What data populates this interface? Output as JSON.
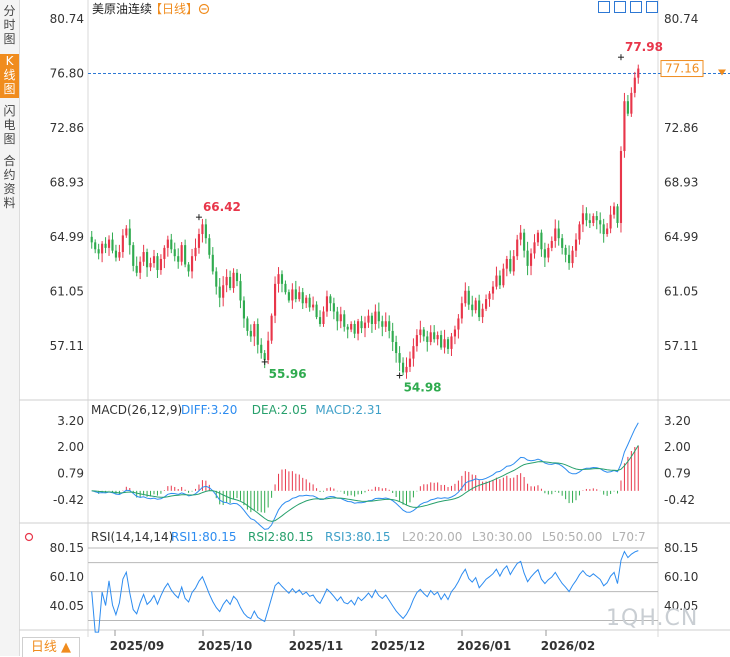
{
  "sidebar": {
    "tabs": [
      {
        "label": "分时图",
        "active": false
      },
      {
        "label": "K线图",
        "active": true
      },
      {
        "label": "闪电图",
        "active": false
      },
      {
        "label": "合约资料",
        "active": false
      }
    ]
  },
  "header": {
    "instrument": "美原油连续",
    "period_tag": "【日线】",
    "zoom_icon": "zoom-out-icon"
  },
  "toolbar_icons": [
    "expand-icon",
    "crosshair-icon",
    "settings-icon",
    "fullscreen-icon"
  ],
  "footer": {
    "period_button": "日线 ▲"
  },
  "watermark": "1QH.CN",
  "colors": {
    "up": "#e8364a",
    "down": "#2fab4f",
    "accent": "#f08c1e",
    "diff": "#2d8cf0",
    "dea": "#27a06c",
    "macd": "#3fa0c8",
    "rsi": "#2d8cf0"
  },
  "chart_data": [
    {
      "type": "candlestick",
      "panel": "price",
      "y_ticks": [
        "80.74",
        "76.80",
        "72.86",
        "68.93",
        "64.99",
        "61.05",
        "57.11"
      ],
      "ylim": [
        53.2,
        80.74
      ],
      "x_ticks": [
        "2025/09",
        "2025/10",
        "2025/11",
        "2025/12",
        "2026/01",
        "2026/02"
      ],
      "current_price_label": "77.16",
      "reference_line": 76.8,
      "annotations": [
        {
          "label": "66.42",
          "value": 66.42,
          "kind": "high"
        },
        {
          "label": "55.96",
          "value": 55.96,
          "kind": "low"
        },
        {
          "label": "54.98",
          "value": 54.98,
          "kind": "low"
        },
        {
          "label": "77.98",
          "value": 77.98,
          "kind": "high"
        }
      ],
      "series_close": [
        64.6,
        64.1,
        63.8,
        64.5,
        64.2,
        64.8,
        64.0,
        63.5,
        63.9,
        65.1,
        65.6,
        64.4,
        62.9,
        62.4,
        63.2,
        63.9,
        62.8,
        63.1,
        63.6,
        62.6,
        63.4,
        64.2,
        64.8,
        64.1,
        63.6,
        63.2,
        64.4,
        63.0,
        62.5,
        63.6,
        64.2,
        65.2,
        65.9,
        64.9,
        63.7,
        62.5,
        61.4,
        60.6,
        61.5,
        62.1,
        61.3,
        62.4,
        61.8,
        60.4,
        59.1,
        58.2,
        57.8,
        58.7,
        57.2,
        56.6,
        56.1,
        57.5,
        59.3,
        61.6,
        62.3,
        61.6,
        61.0,
        60.4,
        61.2,
        60.5,
        61.0,
        60.2,
        60.6,
        59.9,
        60.1,
        59.2,
        58.7,
        59.6,
        60.7,
        60.2,
        59.6,
        58.9,
        59.4,
        58.5,
        58.3,
        58.7,
        58.0,
        58.9,
        58.4,
        58.8,
        59.3,
        58.7,
        59.6,
        58.9,
        58.5,
        58.9,
        58.2,
        57.4,
        56.6,
        55.9,
        55.2,
        55.6,
        56.2,
        57.1,
        57.9,
        58.3,
        57.8,
        57.4,
        58.1,
        57.6,
        57.9,
        57.0,
        57.6,
        56.9,
        57.8,
        58.3,
        59.1,
        60.2,
        61.1,
        60.1,
        59.7,
        60.4,
        59.2,
        59.8,
        60.5,
        60.9,
        61.4,
        62.2,
        61.5,
        62.7,
        63.4,
        62.5,
        63.6,
        64.8,
        65.3,
        64.0,
        62.9,
        63.8,
        64.6,
        65.3,
        64.1,
        63.5,
        64.2,
        64.7,
        65.6,
        64.9,
        64.2,
        63.7,
        63.1,
        64.0,
        64.8,
        65.9,
        66.7,
        66.2,
        66.0,
        66.5,
        66.2,
        65.9,
        65.2,
        65.6,
        66.6,
        67.2,
        66.0,
        71.2,
        74.8,
        73.9,
        75.4,
        76.5,
        77.16
      ],
      "series_open": [
        65.0,
        64.6,
        64.1,
        63.8,
        64.5,
        64.2,
        64.8,
        64.0,
        63.5,
        63.9,
        65.1,
        65.6,
        64.4,
        62.9,
        62.4,
        63.2,
        63.9,
        62.8,
        63.1,
        63.6,
        62.6,
        63.4,
        64.2,
        64.8,
        64.1,
        63.6,
        63.2,
        64.4,
        63.0,
        62.5,
        63.6,
        64.2,
        65.2,
        65.9,
        64.9,
        63.7,
        62.5,
        61.4,
        60.6,
        61.5,
        62.1,
        61.3,
        62.4,
        61.8,
        60.4,
        59.1,
        58.2,
        57.8,
        58.7,
        57.2,
        56.6,
        56.1,
        57.5,
        59.3,
        61.6,
        62.3,
        61.6,
        61.0,
        60.4,
        61.2,
        60.5,
        61.0,
        60.2,
        60.6,
        59.9,
        60.1,
        59.2,
        58.7,
        59.6,
        60.7,
        60.2,
        59.6,
        58.9,
        59.4,
        58.5,
        58.3,
        58.7,
        58.0,
        58.9,
        58.4,
        58.8,
        59.3,
        58.7,
        59.6,
        58.9,
        58.5,
        58.9,
        58.2,
        57.4,
        56.6,
        55.9,
        55.2,
        55.6,
        56.2,
        57.1,
        57.9,
        58.3,
        57.8,
        57.4,
        58.1,
        57.6,
        57.9,
        57.0,
        57.6,
        56.9,
        57.8,
        58.3,
        59.1,
        60.2,
        61.1,
        60.1,
        59.7,
        60.4,
        59.2,
        59.8,
        60.5,
        60.9,
        61.4,
        62.2,
        61.5,
        62.7,
        63.4,
        62.5,
        63.6,
        64.8,
        65.3,
        64.0,
        62.9,
        63.8,
        64.6,
        65.3,
        64.1,
        63.5,
        64.2,
        64.7,
        65.6,
        64.9,
        64.2,
        63.7,
        63.1,
        64.0,
        64.8,
        65.9,
        66.7,
        66.2,
        66.0,
        66.5,
        66.2,
        65.9,
        65.2,
        65.6,
        66.6,
        67.2,
        66.0,
        71.2,
        74.8,
        73.9,
        75.4,
        76.5
      ]
    },
    {
      "type": "histogram+line",
      "panel": "macd",
      "title": "MACD(26,12,9)",
      "legend": [
        {
          "label": "DIFF:3.20",
          "key": "diff"
        },
        {
          "label": "DEA:2.05",
          "key": "dea"
        },
        {
          "label": "MACD:2.31",
          "key": "macd"
        }
      ],
      "y_ticks": [
        "3.20",
        "2.00",
        "0.79",
        "-0.42"
      ],
      "ylim": [
        -2.3,
        3.9
      ]
    },
    {
      "type": "line",
      "panel": "rsi",
      "title": "RSI(14,14,14)",
      "legend": [
        {
          "label": "RSI1:80.15",
          "key": "rsi1"
        },
        {
          "label": "RSI2:80.15",
          "key": "rsi2"
        },
        {
          "label": "RSI3:80.15",
          "key": "rsi3"
        },
        {
          "label": "L20:20.00",
          "key": "l20"
        },
        {
          "label": "L30:30.00",
          "key": "l30"
        },
        {
          "label": "L50:50.00",
          "key": "l50"
        },
        {
          "label": "L70:7",
          "key": "l70"
        }
      ],
      "y_ticks": [
        "80.15",
        "60.10",
        "40.05"
      ],
      "ylim": [
        20,
        85
      ]
    }
  ]
}
